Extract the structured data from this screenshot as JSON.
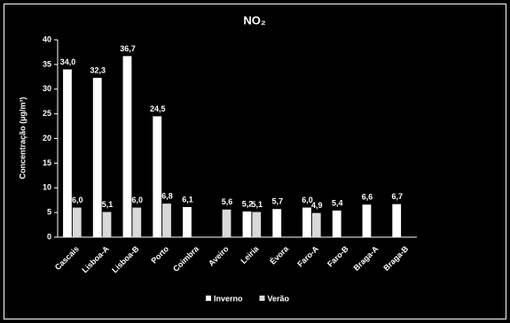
{
  "chart_data": {
    "type": "bar",
    "title": "NO₂",
    "y_label": "Concentração (µg/m³)",
    "categories": [
      "Cascais",
      "Lisboa-A",
      "Lisboa-B",
      "Porto",
      "Coimbra",
      "Aveiro",
      "Leiria",
      "Évora",
      "Faro-A",
      "Faro-B",
      "Braga-A",
      "Braga-B"
    ],
    "series": [
      {
        "name": "Inverno",
        "color": "#ffffff",
        "values": [
          34.0,
          32.3,
          36.7,
          24.5,
          6.1,
          null,
          5.2,
          5.7,
          6.0,
          5.4,
          6.6,
          6.7
        ],
        "value_labels": [
          "34,0",
          "32,3",
          "36,7",
          "24,5",
          "6,1",
          null,
          "5,2",
          "5,7",
          "6,0",
          "5,4",
          "6,6",
          "6,7"
        ]
      },
      {
        "name": "Verão",
        "color": "#d9d9d9",
        "values": [
          6.0,
          5.1,
          6.0,
          6.8,
          null,
          5.6,
          5.1,
          null,
          4.9,
          null,
          null,
          null
        ],
        "value_labels": [
          "6,0",
          "5,1",
          "6,0",
          "6,8",
          null,
          "5,6",
          "5,1",
          null,
          "4,9",
          null,
          null,
          null
        ]
      }
    ],
    "ylim": [
      0,
      40
    ],
    "yticks": [
      0,
      5,
      10,
      15,
      20,
      25,
      30,
      35,
      40
    ]
  }
}
